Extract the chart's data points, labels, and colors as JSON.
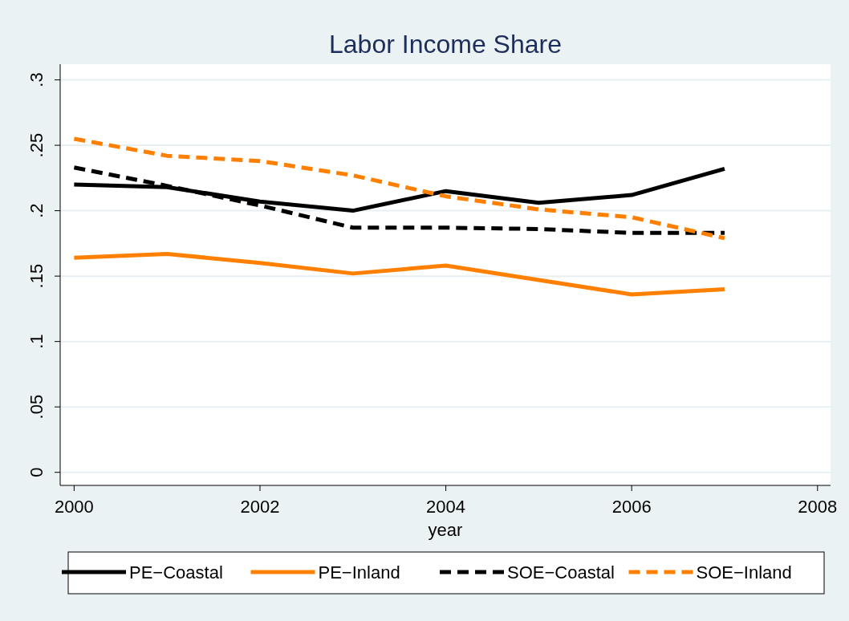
{
  "chart_data": {
    "type": "line",
    "title": "Labor Income Share",
    "xlabel": "year",
    "x": [
      2000,
      2001,
      2002,
      2003,
      2004,
      2005,
      2006,
      2007
    ],
    "series": [
      {
        "name": "PE−Coastal",
        "color": "#000000",
        "line_style": "solid",
        "values": [
          0.22,
          0.218,
          0.207,
          0.2,
          0.215,
          0.206,
          0.212,
          0.232
        ]
      },
      {
        "name": "PE−Inland",
        "color": "#ff8000",
        "line_style": "solid",
        "values": [
          0.164,
          0.167,
          0.16,
          0.152,
          0.158,
          0.147,
          0.136,
          0.14
        ]
      },
      {
        "name": "SOE−Coastal",
        "color": "#000000",
        "line_style": "dashed",
        "values": [
          0.233,
          0.219,
          0.204,
          0.187,
          0.187,
          0.186,
          0.183,
          0.183
        ]
      },
      {
        "name": "SOE−Inland",
        "color": "#ff8000",
        "line_style": "dashed",
        "values": [
          0.255,
          0.242,
          0.238,
          0.227,
          0.211,
          0.201,
          0.195,
          0.179
        ]
      }
    ],
    "xlim": [
      1999.85,
      2008.14
    ],
    "xticks": [
      2000,
      2002,
      2004,
      2006,
      2008
    ],
    "ylim": [
      -0.01,
      0.312
    ],
    "yticks": [
      {
        "value": 0,
        "label": "0"
      },
      {
        "value": 0.05,
        "label": ".05"
      },
      {
        "value": 0.1,
        "label": ".1"
      },
      {
        "value": 0.15,
        "label": ".15"
      },
      {
        "value": 0.2,
        "label": ".2"
      },
      {
        "value": 0.25,
        "label": ".25"
      },
      {
        "value": 0.3,
        "label": ".3"
      }
    ],
    "grid": "y",
    "legend": "bottom",
    "marker": "none"
  }
}
